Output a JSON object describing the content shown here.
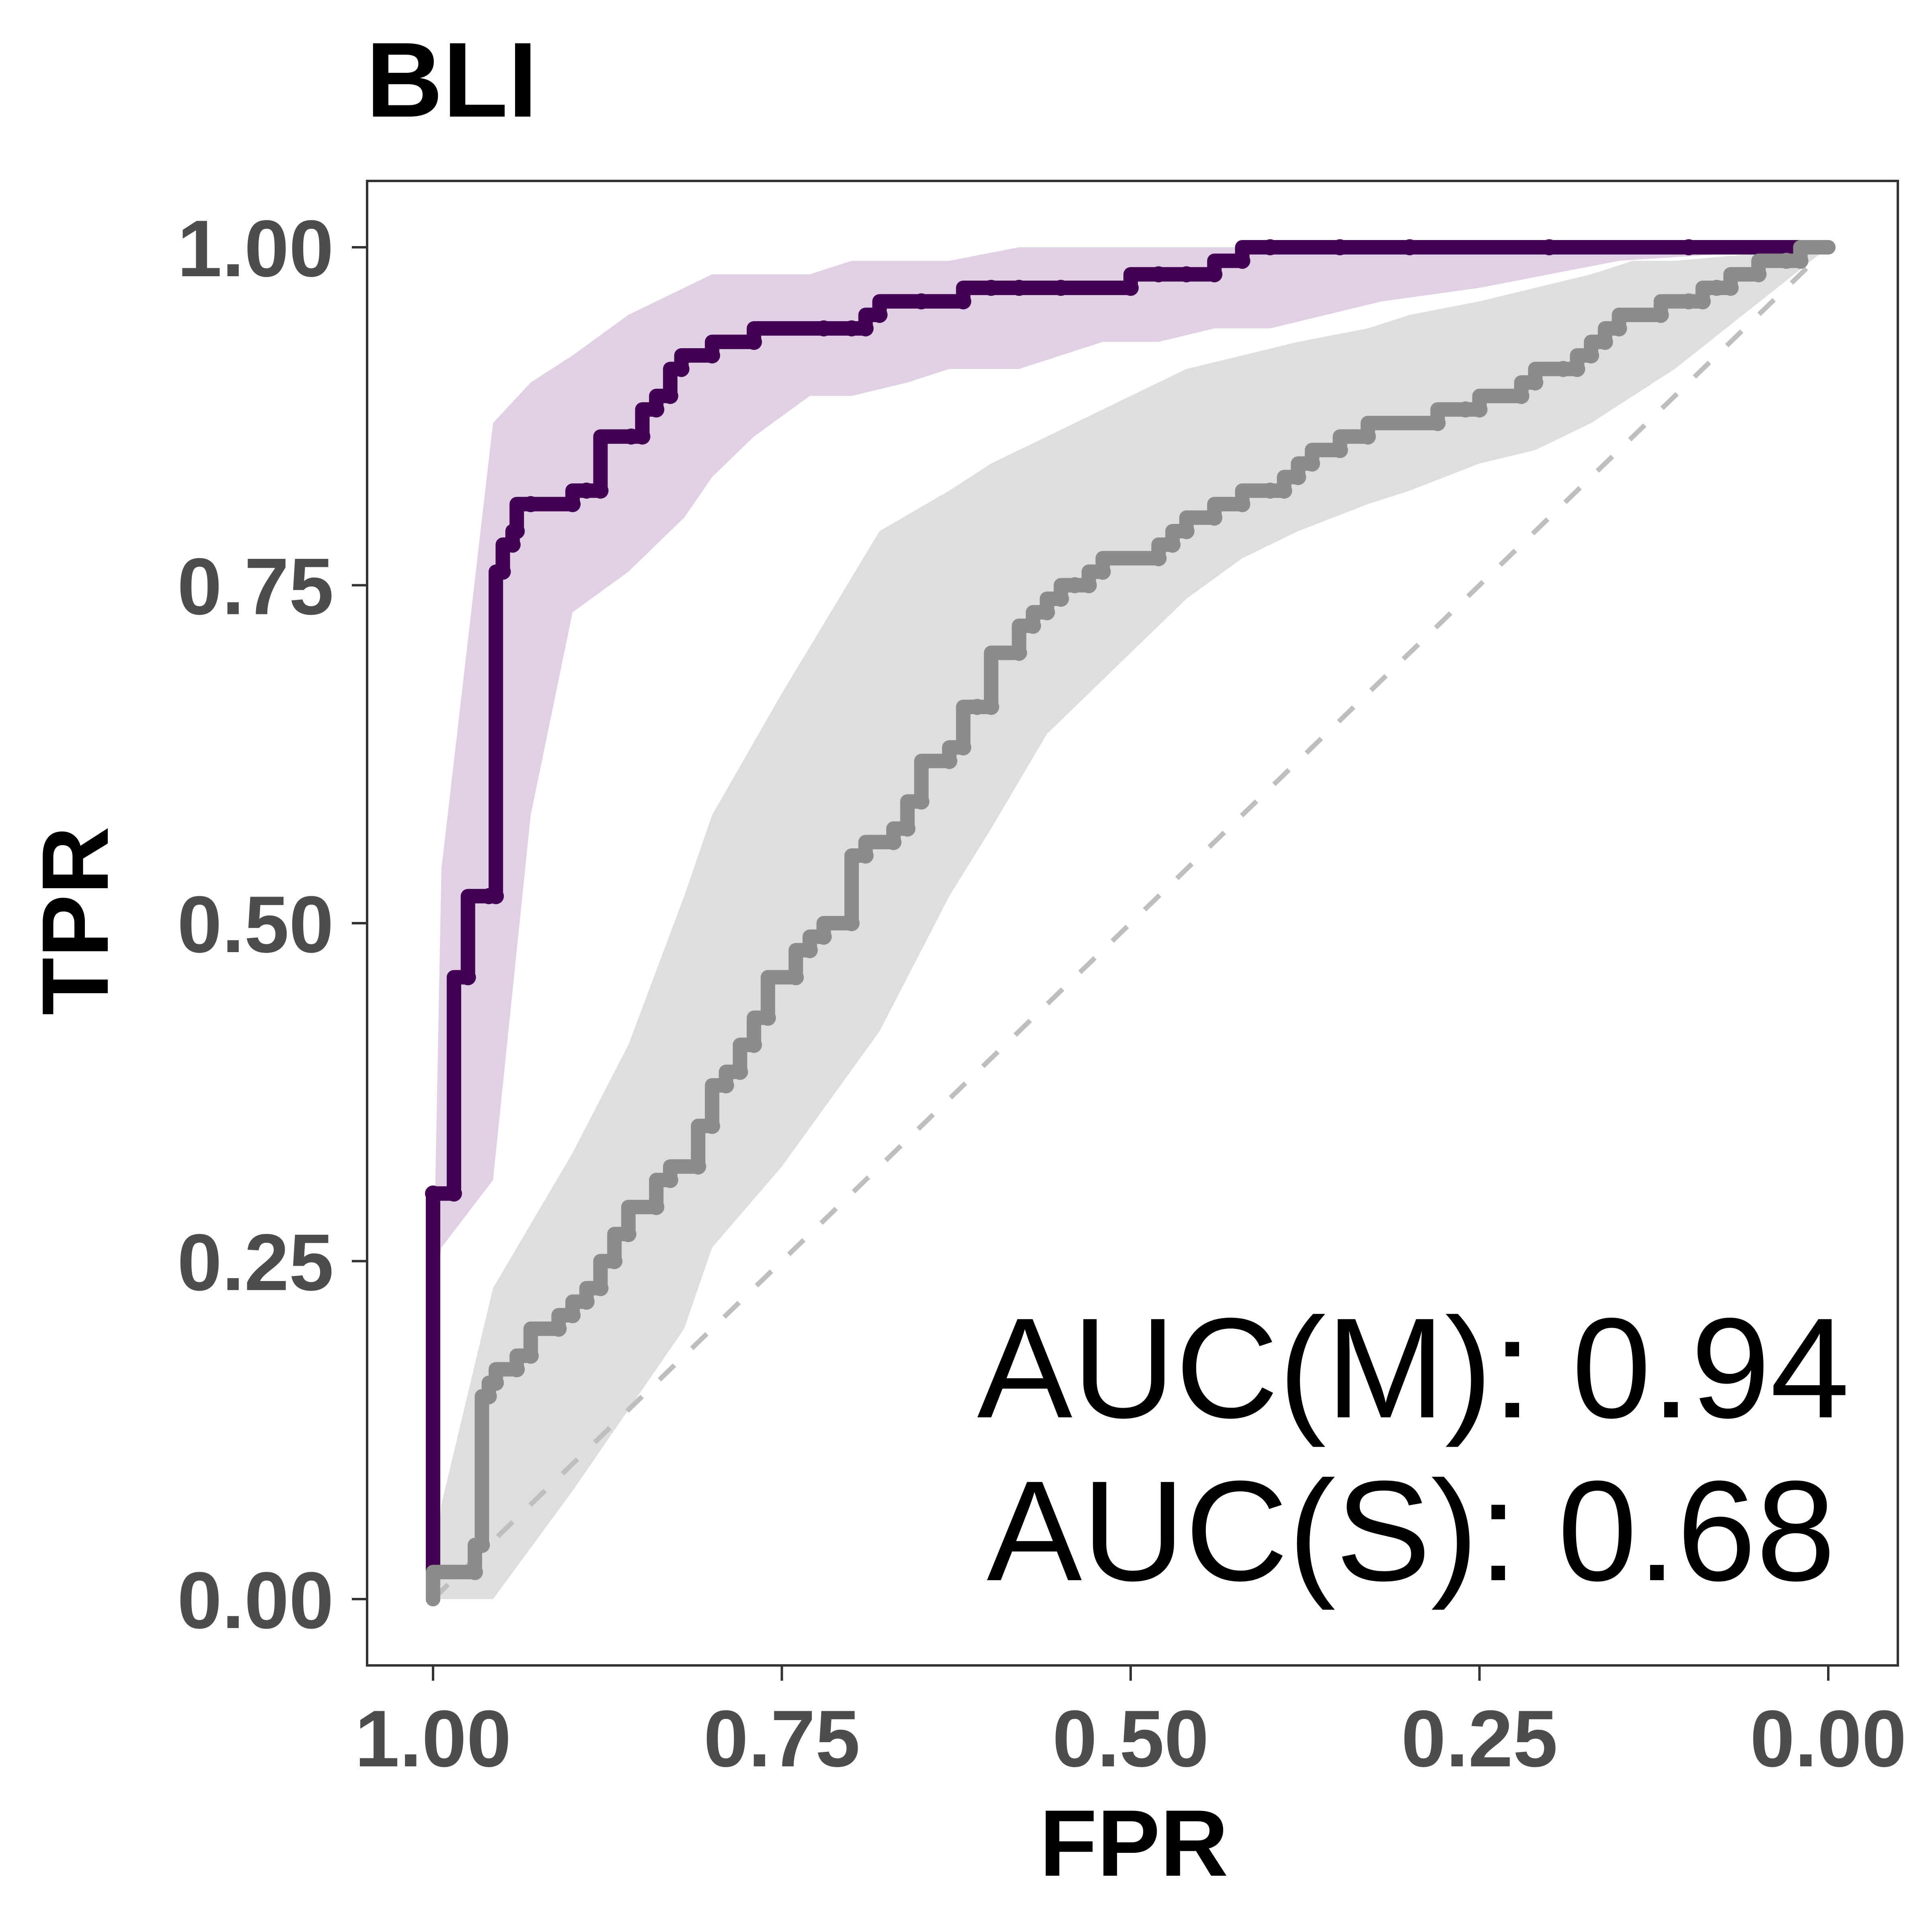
{
  "chart_data": {
    "type": "line",
    "title": "BLI",
    "xlabel": "FPR",
    "ylabel": "TPR",
    "xlim": [
      1.0,
      0.0
    ],
    "ylim": [
      0.0,
      1.0
    ],
    "x_reversed": true,
    "grid": false,
    "x_ticks": [
      1.0,
      0.75,
      0.5,
      0.25,
      0.0
    ],
    "x_tick_labels": [
      "1.00",
      "0.75",
      "0.50",
      "0.25",
      "0.00"
    ],
    "y_ticks": [
      0.0,
      0.25,
      0.5,
      0.75,
      1.0
    ],
    "y_tick_labels": [
      "0.00",
      "0.25",
      "0.50",
      "0.75",
      "1.00"
    ],
    "reference_line": {
      "name": "chance",
      "x": [
        1.0,
        0.0
      ],
      "y": [
        0.0,
        1.0
      ],
      "color": "#bebebe",
      "style": "dashed"
    },
    "annotations": [
      "AUC(M): 0.94",
      "AUC(S): 0.68"
    ],
    "series": [
      {
        "name": "M",
        "color": "#440154",
        "band_color": "#c9a9cf",
        "band_opacity": 0.55,
        "x": [
          1.0,
          1.0,
          0.985,
          0.975,
          0.96,
          0.955,
          0.95,
          0.943,
          0.94,
          0.93,
          0.9,
          0.89,
          0.88,
          0.858,
          0.85,
          0.84,
          0.83,
          0.822,
          0.8,
          0.77,
          0.72,
          0.7,
          0.69,
          0.68,
          0.65,
          0.62,
          0.6,
          0.58,
          0.55,
          0.5,
          0.48,
          0.46,
          0.44,
          0.42,
          0.4,
          0.35,
          0.3,
          0.2,
          0.1,
          0.0
        ],
        "y": [
          0.0,
          0.3,
          0.3,
          0.46,
          0.52,
          0.52,
          0.76,
          0.78,
          0.79,
          0.81,
          0.81,
          0.82,
          0.82,
          0.86,
          0.86,
          0.88,
          0.89,
          0.91,
          0.92,
          0.93,
          0.94,
          0.94,
          0.94,
          0.95,
          0.96,
          0.96,
          0.97,
          0.97,
          0.97,
          0.97,
          0.98,
          0.98,
          0.98,
          0.99,
          1.0,
          1.0,
          1.0,
          1.0,
          1.0,
          1.0
        ],
        "band_x": [
          1.0,
          0.994,
          0.957,
          0.93,
          0.9,
          0.86,
          0.82,
          0.8,
          0.77,
          0.73,
          0.7,
          0.66,
          0.63,
          0.58,
          0.55,
          0.52,
          0.48,
          0.44,
          0.4,
          0.36,
          0.32,
          0.25,
          0.15,
          0.0
        ],
        "band_lower": [
          0.22,
          0.26,
          0.31,
          0.58,
          0.73,
          0.76,
          0.8,
          0.83,
          0.86,
          0.89,
          0.89,
          0.9,
          0.91,
          0.91,
          0.92,
          0.93,
          0.93,
          0.94,
          0.94,
          0.95,
          0.96,
          0.97,
          0.99,
          1.0
        ],
        "band_upper": [
          0.22,
          0.54,
          0.87,
          0.9,
          0.92,
          0.95,
          0.97,
          0.98,
          0.98,
          0.98,
          0.99,
          0.99,
          0.99,
          1.0,
          1.0,
          1.0,
          1.0,
          1.0,
          1.0,
          1.0,
          1.0,
          1.0,
          1.0,
          1.0
        ]
      },
      {
        "name": "S",
        "color": "#8c8c8c",
        "band_color": "#d3d3d3",
        "band_opacity": 0.75,
        "x": [
          1.0,
          0.97,
          0.965,
          0.96,
          0.955,
          0.94,
          0.93,
          0.91,
          0.9,
          0.89,
          0.88,
          0.87,
          0.86,
          0.84,
          0.83,
          0.81,
          0.8,
          0.79,
          0.78,
          0.77,
          0.76,
          0.74,
          0.73,
          0.72,
          0.7,
          0.69,
          0.67,
          0.66,
          0.65,
          0.63,
          0.62,
          0.61,
          0.6,
          0.58,
          0.57,
          0.56,
          0.55,
          0.54,
          0.53,
          0.52,
          0.48,
          0.47,
          0.46,
          0.44,
          0.42,
          0.4,
          0.39,
          0.38,
          0.37,
          0.35,
          0.33,
          0.28,
          0.26,
          0.25,
          0.22,
          0.21,
          0.19,
          0.18,
          0.17,
          0.16,
          0.15,
          0.12,
          0.1,
          0.09,
          0.08,
          0.07,
          0.05,
          0.03,
          0.02,
          0.0
        ],
        "y": [
          0.0,
          0.02,
          0.04,
          0.15,
          0.16,
          0.17,
          0.18,
          0.2,
          0.21,
          0.22,
          0.23,
          0.25,
          0.27,
          0.29,
          0.31,
          0.32,
          0.35,
          0.38,
          0.39,
          0.41,
          0.43,
          0.46,
          0.48,
          0.49,
          0.5,
          0.55,
          0.56,
          0.57,
          0.59,
          0.62,
          0.63,
          0.66,
          0.66,
          0.7,
          0.72,
          0.73,
          0.74,
          0.75,
          0.75,
          0.76,
          0.77,
          0.78,
          0.79,
          0.8,
          0.81,
          0.82,
          0.82,
          0.83,
          0.84,
          0.85,
          0.86,
          0.87,
          0.88,
          0.88,
          0.89,
          0.9,
          0.91,
          0.91,
          0.92,
          0.93,
          0.94,
          0.95,
          0.96,
          0.96,
          0.97,
          0.97,
          0.98,
          0.99,
          0.99,
          1.0
        ],
        "band_x": [
          1.0,
          0.994,
          0.957,
          0.9,
          0.86,
          0.82,
          0.8,
          0.75,
          0.68,
          0.63,
          0.6,
          0.56,
          0.54,
          0.5,
          0.46,
          0.42,
          0.38,
          0.33,
          0.3,
          0.25,
          0.21,
          0.17,
          0.14,
          0.11,
          0.0
        ],
        "band_lower": [
          0.0,
          0.0,
          0.0,
          0.08,
          0.14,
          0.2,
          0.26,
          0.32,
          0.42,
          0.52,
          0.57,
          0.64,
          0.66,
          0.7,
          0.74,
          0.77,
          0.79,
          0.81,
          0.82,
          0.84,
          0.85,
          0.87,
          0.89,
          0.91,
          1.0
        ],
        "band_upper": [
          0.0,
          0.07,
          0.23,
          0.33,
          0.41,
          0.52,
          0.58,
          0.67,
          0.79,
          0.82,
          0.84,
          0.86,
          0.87,
          0.89,
          0.91,
          0.92,
          0.93,
          0.94,
          0.95,
          0.96,
          0.97,
          0.98,
          0.99,
          0.99,
          1.0
        ]
      }
    ]
  }
}
